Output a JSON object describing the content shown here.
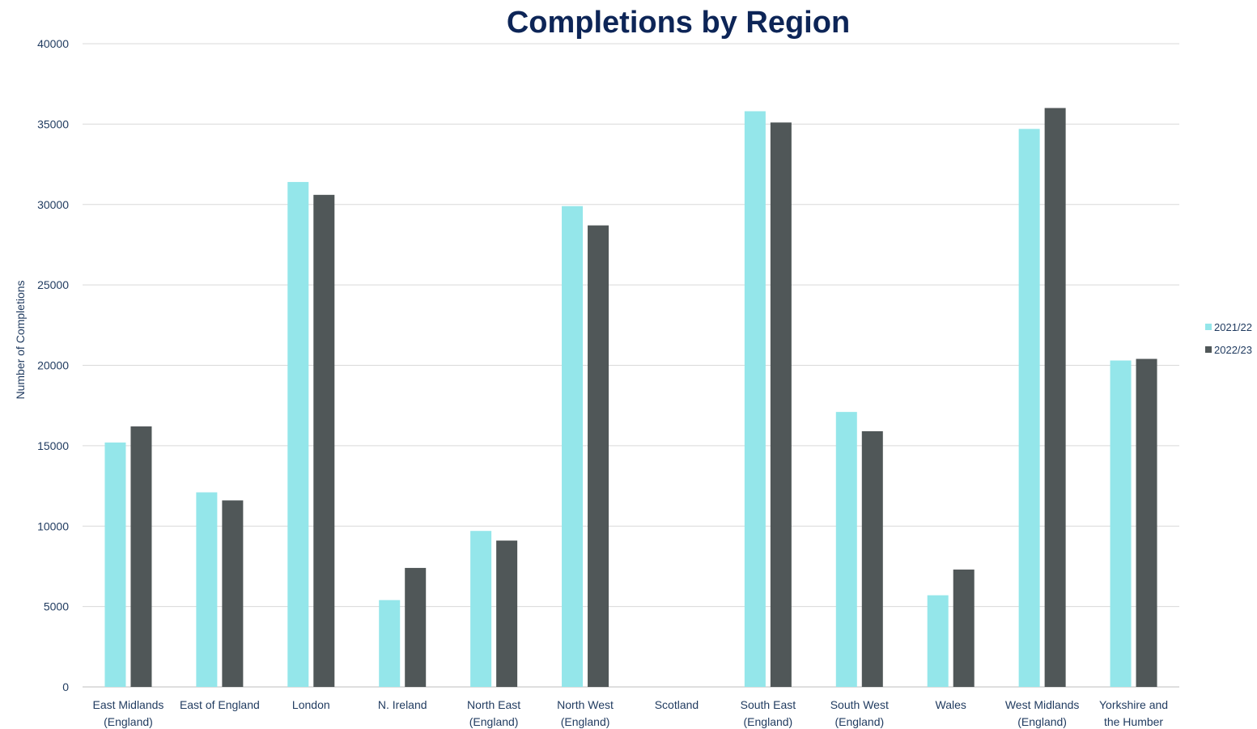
{
  "chart_data": {
    "type": "bar",
    "title": "Completions by Region",
    "xlabel": "",
    "ylabel": "Number of Completions",
    "ylim": [
      0,
      40000
    ],
    "yticks": [
      0,
      5000,
      10000,
      15000,
      20000,
      25000,
      30000,
      35000,
      40000
    ],
    "grid": true,
    "legend_position": "right",
    "categories": [
      [
        "East Midlands",
        "(England)"
      ],
      [
        "East of England"
      ],
      [
        "London"
      ],
      [
        "N. Ireland"
      ],
      [
        "North East",
        "(England)"
      ],
      [
        "North West",
        "(England)"
      ],
      [
        "Scotland"
      ],
      [
        "South East",
        "(England)"
      ],
      [
        "South West",
        "(England)"
      ],
      [
        "Wales"
      ],
      [
        "West Midlands",
        "(England)"
      ],
      [
        "Yorkshire and",
        "the Humber"
      ]
    ],
    "series": [
      {
        "name": "2021/22",
        "color": "#94e6ea",
        "values": [
          15200,
          12100,
          31400,
          5400,
          9700,
          29900,
          null,
          35800,
          17100,
          5700,
          34700,
          20300
        ]
      },
      {
        "name": "2022/23",
        "color": "#505758",
        "values": [
          16200,
          11600,
          30600,
          7400,
          9100,
          28700,
          null,
          35100,
          15900,
          7300,
          36000,
          20400
        ]
      }
    ]
  }
}
